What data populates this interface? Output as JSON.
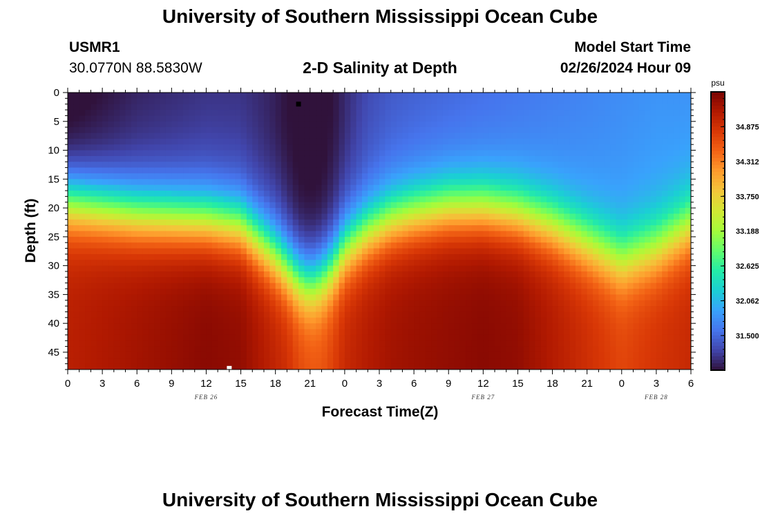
{
  "header": {
    "title_top": "University of Southern Mississippi Ocean Cube",
    "title_bottom": "University of Southern Mississippi Ocean Cube",
    "station_id": "USMR1",
    "station_coords": "30.0770N  88.5830W",
    "plot_title": "2-D Salinity at Depth",
    "model_start_label": "Model Start Time",
    "model_start_value": "02/26/2024 Hour 09"
  },
  "chart_data": {
    "type": "heatmap",
    "title": "2-D Salinity at Depth",
    "xlabel": "Forecast Time(Z)",
    "ylabel": "Depth (ft)",
    "x_tick_labels": [
      "0",
      "3",
      "6",
      "9",
      "12",
      "15",
      "18",
      "21",
      "0",
      "3",
      "6",
      "9",
      "12",
      "15",
      "18",
      "21",
      "0",
      "3",
      "6"
    ],
    "x_range_hours": [
      0,
      54
    ],
    "date_labels": [
      {
        "text": "FEB 26",
        "hour": 12
      },
      {
        "text": "FEB 27",
        "hour": 36
      },
      {
        "text": "FEB 28",
        "hour": 51
      }
    ],
    "y_ticks": [
      0,
      5,
      10,
      15,
      20,
      25,
      30,
      35,
      40,
      45
    ],
    "ylim": [
      0,
      48
    ],
    "y_inverted": true,
    "colorbar": {
      "unit": "psu",
      "min": 30.94,
      "max": 35.44,
      "tick_values": [
        34.875,
        34.312,
        33.75,
        33.188,
        32.625,
        32.062,
        31.5
      ],
      "tick_labels": [
        "34.875",
        "34.312",
        "33.750",
        "33.188",
        "32.625",
        "32.062",
        "31.500"
      ],
      "colors": [
        "#30123b",
        "#4145ab",
        "#4675ed",
        "#39a2fc",
        "#1bcfd4",
        "#24eca6",
        "#61fc6c",
        "#a4fc3b",
        "#d1e834",
        "#f3c63a",
        "#fe9b2d",
        "#f36315",
        "#d93806",
        "#b11901",
        "#7a0402"
      ]
    },
    "grid": false,
    "columns": {
      "hours": [
        0,
        6,
        12,
        15,
        18,
        19,
        20,
        21,
        22,
        23,
        24,
        26,
        28,
        30,
        33,
        36,
        39,
        42,
        45,
        48,
        51,
        54
      ],
      "surface_psu": [
        30.98,
        31.2,
        31.3,
        31.3,
        31.2,
        31.1,
        31.0,
        30.98,
        31.0,
        31.1,
        31.25,
        31.45,
        31.55,
        31.6,
        31.65,
        31.7,
        31.75,
        31.8,
        31.85,
        31.9,
        31.95,
        31.95
      ],
      "halocline_depth_ft": [
        19,
        21,
        22,
        23,
        28,
        30,
        32,
        33,
        32,
        30,
        27,
        24,
        22,
        21,
        20,
        20,
        21,
        23,
        26,
        29,
        27,
        23
      ],
      "deep_psu": [
        35.05,
        35.2,
        35.35,
        35.3,
        35.0,
        34.9,
        34.7,
        34.6,
        34.6,
        34.75,
        34.95,
        35.1,
        35.2,
        35.25,
        35.3,
        35.35,
        35.3,
        35.1,
        34.9,
        34.7,
        34.85,
        34.95
      ]
    },
    "dark_patch": {
      "center_hour": 20.5,
      "center_depth_ft": 5,
      "psu": 30.94
    },
    "markers": [
      {
        "hour": 20,
        "depth_ft": 2,
        "color": "#000000"
      },
      {
        "hour": 14,
        "depth_ft": 47.8,
        "color": "#ffffff"
      }
    ]
  }
}
